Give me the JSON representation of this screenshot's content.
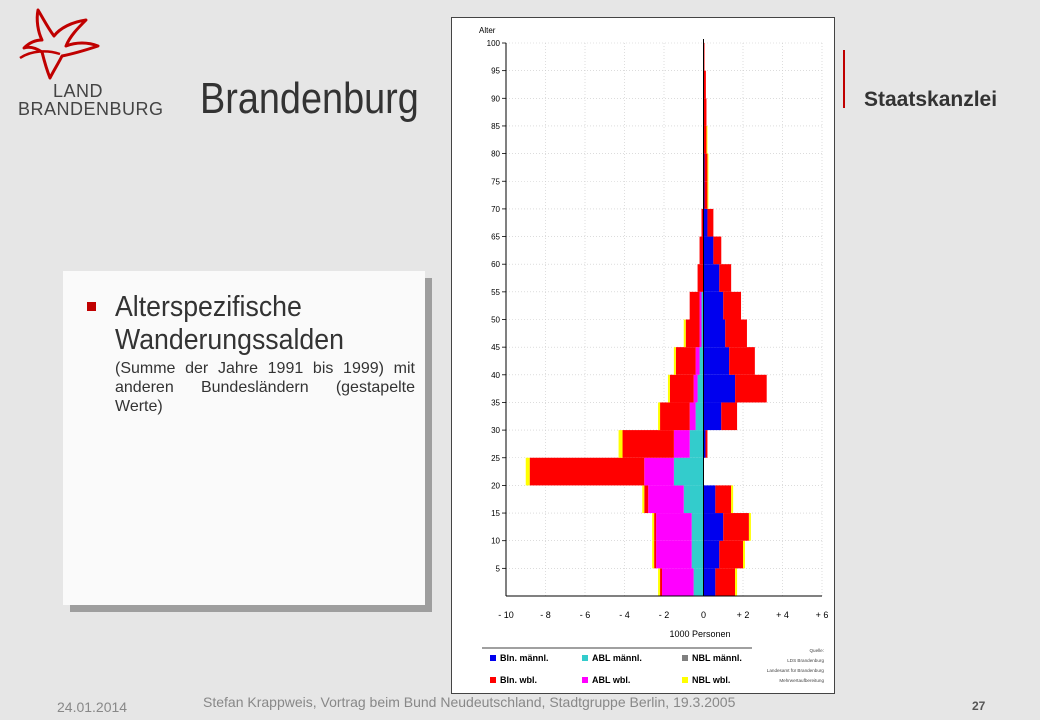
{
  "header": {
    "logo_line1": "LAND",
    "logo_line2": "BRANDENBURG",
    "title": "Brandenburg",
    "department": "Staatskanzlei"
  },
  "colors": {
    "brand_red": "#c00000",
    "bln_male": "#0000ee",
    "abl_male": "#33cccc",
    "nbl_male": "#808080",
    "bln_female": "#ff0000",
    "abl_female": "#ff00ff",
    "nbl_female": "#ffff00"
  },
  "textbox": {
    "heading": "Alterspezifische Wanderungssalden",
    "subtext": "(Summe der Jahre 1991 bis 1999) mit anderen Bundesländern (gestapelte Werte)"
  },
  "footer": {
    "date": "24.01.2014",
    "credit": "Stefan Krappweis, Vortrag beim Bund Neudeutschland, Stadtgruppe Berlin, 19.3.2005",
    "page": "27"
  },
  "chart_data": {
    "type": "bar",
    "orientation": "horizontal-stacked",
    "title": "",
    "ylabel": "Alter",
    "xlabel": "1000 Personen",
    "xlim": [
      -10,
      6
    ],
    "ylim": [
      0,
      100
    ],
    "x_ticks": [
      "- 10",
      "- 8",
      "- 6",
      "- 4",
      "- 2",
      "0",
      "+ 2",
      "+ 4",
      "+ 6"
    ],
    "y_ticks": [
      "5",
      "10",
      "15",
      "20",
      "25",
      "30",
      "35",
      "40",
      "45",
      "50",
      "55",
      "60",
      "65",
      "70",
      "75",
      "80",
      "85",
      "90",
      "95",
      "100"
    ],
    "grid": true,
    "source_note": [
      "Quelle:",
      "LDS Brandenburg",
      "Landesamt für Brandenburg",
      "Mehrwertaufbereitung"
    ],
    "legend": [
      {
        "label": "Bln. männl.",
        "color": "#0000ee"
      },
      {
        "label": "ABL männl.",
        "color": "#33cccc"
      },
      {
        "label": "NBL männl.",
        "color": "#808080"
      },
      {
        "label": "Bln. wbl.",
        "color": "#ff0000"
      },
      {
        "label": "ABL wbl.",
        "color": "#ff00ff"
      },
      {
        "label": "NBL wbl.",
        "color": "#ffff00"
      }
    ],
    "age_bands": [
      {
        "age": 0,
        "pos": [
          0.6,
          1.0,
          0.0,
          0.1
        ],
        "neg": [
          0.5,
          1.6,
          0.1,
          0.1
        ]
      },
      {
        "age": 5,
        "pos": [
          0.8,
          1.2,
          0.0,
          0.1
        ],
        "neg": [
          0.6,
          1.8,
          0.1,
          0.1
        ]
      },
      {
        "age": 10,
        "pos": [
          1.0,
          1.3,
          0.0,
          0.1
        ],
        "neg": [
          0.6,
          1.8,
          0.1,
          0.1
        ]
      },
      {
        "age": 15,
        "pos": [
          0.6,
          0.8,
          0.0,
          0.1
        ],
        "neg": [
          1.0,
          1.8,
          0.2,
          0.1
        ]
      },
      {
        "age": 20,
        "pos": [
          0.0,
          0.0,
          0.0,
          0.0
        ],
        "neg": [
          1.5,
          1.5,
          5.8,
          0.2
        ]
      },
      {
        "age": 25,
        "pos": [
          0.1,
          0.1,
          0.0,
          0.0
        ],
        "neg": [
          0.7,
          0.8,
          2.6,
          0.2
        ]
      },
      {
        "age": 30,
        "pos": [
          0.9,
          0.8,
          0.0,
          0.0
        ],
        "neg": [
          0.4,
          0.3,
          1.5,
          0.1
        ]
      },
      {
        "age": 35,
        "pos": [
          1.6,
          1.6,
          0.0,
          0.0
        ],
        "neg": [
          0.3,
          0.2,
          1.2,
          0.1
        ]
      },
      {
        "age": 40,
        "pos": [
          1.3,
          1.3,
          0.0,
          0.0
        ],
        "neg": [
          0.2,
          0.2,
          1.0,
          0.1
        ]
      },
      {
        "age": 45,
        "pos": [
          1.1,
          1.1,
          0.0,
          0.0
        ],
        "neg": [
          0.1,
          0.1,
          0.7,
          0.1
        ]
      },
      {
        "age": 50,
        "pos": [
          1.0,
          0.9,
          0.0,
          0.0
        ],
        "neg": [
          0.1,
          0.1,
          0.5,
          0.0
        ]
      },
      {
        "age": 55,
        "pos": [
          0.8,
          0.6,
          0.0,
          0.0
        ],
        "neg": [
          0.0,
          0.0,
          0.3,
          0.0
        ]
      },
      {
        "age": 60,
        "pos": [
          0.5,
          0.4,
          0.0,
          0.0
        ],
        "neg": [
          0.0,
          0.0,
          0.2,
          0.0
        ]
      },
      {
        "age": 65,
        "pos": [
          0.2,
          0.3,
          0.0,
          0.0
        ],
        "neg": [
          0.0,
          0.0,
          0.1,
          0.0
        ]
      },
      {
        "age": 70,
        "pos": [
          0.05,
          0.15,
          0.0,
          0.05
        ],
        "neg": [
          0.0,
          0.0,
          0.0,
          0.0
        ]
      },
      {
        "age": 75,
        "pos": [
          0.05,
          0.15,
          0.0,
          0.05
        ],
        "neg": [
          0.0,
          0.0,
          0.0,
          0.0
        ]
      },
      {
        "age": 80,
        "pos": [
          0.0,
          0.15,
          0.0,
          0.05
        ],
        "neg": [
          0.0,
          0.0,
          0.0,
          0.0
        ]
      },
      {
        "age": 85,
        "pos": [
          0.0,
          0.15,
          0.0,
          0.0
        ],
        "neg": [
          0.0,
          0.0,
          0.0,
          0.0
        ]
      },
      {
        "age": 90,
        "pos": [
          0.0,
          0.12,
          0.0,
          0.0
        ],
        "neg": [
          0.0,
          0.0,
          0.0,
          0.0
        ]
      },
      {
        "age": 95,
        "pos": [
          0.0,
          0.05,
          0.0,
          0.0
        ],
        "neg": [
          0.0,
          0.0,
          0.0,
          0.0
        ]
      }
    ],
    "pos_segments": [
      "Bln. männl.",
      "Bln. wbl.",
      "NBL männl.",
      "NBL wbl."
    ],
    "neg_segments": [
      "ABL männl.",
      "ABL wbl.",
      "Bln. wbl.",
      "NBL wbl."
    ]
  }
}
